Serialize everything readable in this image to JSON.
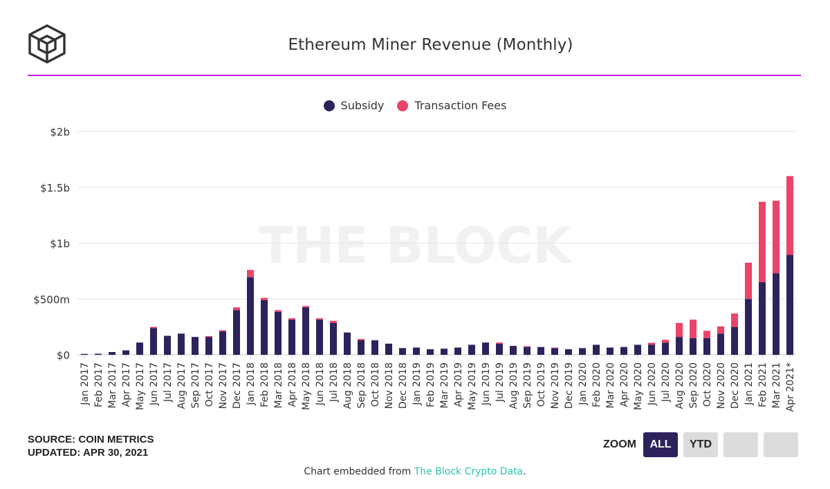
{
  "header": {
    "title": "Ethereum Miner Revenue (Monthly)"
  },
  "watermark": "THE BLOCK",
  "colors": {
    "subsidy": "#2d225c",
    "fees": "#ea4469",
    "accent_rule": "#c41fe0",
    "link": "#2ec4a9"
  },
  "chart_data": {
    "type": "bar",
    "stacked": true,
    "categories": [
      "Jan 2017",
      "Feb 2017",
      "Mar 2017",
      "Apr 2017",
      "May 2017",
      "Jun 2017",
      "Jul 2017",
      "Aug 2017",
      "Sep 2017",
      "Oct 2017",
      "Nov 2017",
      "Dec 2017",
      "Jan 2018",
      "Feb 2018",
      "Mar 2018",
      "Apr 2018",
      "May 2018",
      "Jun 2018",
      "Jul 2018",
      "Aug 2018",
      "Sep 2018",
      "Oct 2018",
      "Nov 2018",
      "Dec 2018",
      "Jan 2019",
      "Feb 2019",
      "Mar 2019",
      "Apr 2019",
      "May 2019",
      "Jun 2019",
      "Jul 2019",
      "Aug 2019",
      "Sep 2019",
      "Oct 2019",
      "Nov 2019",
      "Dec 2019",
      "Jan 2020",
      "Feb 2020",
      "Mar 2020",
      "Apr 2020",
      "May 2020",
      "Jun 2020",
      "Jul 2020",
      "Aug 2020",
      "Sep 2020",
      "Oct 2020",
      "Nov 2020",
      "Dec 2020",
      "Jan 2021",
      "Feb 2021",
      "Mar 2021",
      "Apr 2021*"
    ],
    "series": [
      {
        "name": "Subsidy",
        "values": [
          8,
          10,
          25,
          40,
          110,
          240,
          170,
          190,
          160,
          160,
          210,
          400,
          695,
          490,
          385,
          315,
          425,
          315,
          285,
          200,
          130,
          130,
          100,
          60,
          65,
          50,
          55,
          65,
          90,
          110,
          100,
          80,
          70,
          70,
          60,
          50,
          60,
          90,
          65,
          70,
          90,
          90,
          110,
          160,
          150,
          150,
          190,
          250,
          500,
          650,
          730,
          895
        ]
      },
      {
        "name": "Transaction Fees",
        "values": [
          0,
          0,
          0,
          0,
          0,
          10,
          0,
          0,
          0,
          8,
          10,
          25,
          65,
          20,
          15,
          12,
          12,
          12,
          20,
          0,
          12,
          0,
          0,
          0,
          0,
          0,
          0,
          0,
          0,
          0,
          10,
          0,
          8,
          0,
          5,
          0,
          0,
          0,
          0,
          0,
          0,
          18,
          25,
          125,
          165,
          65,
          65,
          120,
          325,
          720,
          650,
          705
        ]
      }
    ],
    "ylim": [
      0,
      2000
    ],
    "yticks": [
      0,
      500,
      1000,
      1500,
      2000
    ],
    "ytick_labels": [
      "$0",
      "$500m",
      "$1b",
      "$1.5b",
      "$2b"
    ],
    "grid": true,
    "legend_position": "top-center"
  },
  "footer": {
    "source": "SOURCE: COIN METRICS",
    "updated": "UPDATED: APR 30, 2021",
    "zoom_label": "ZOOM",
    "zoom_all": "ALL",
    "zoom_ytd": "YTD",
    "embed_prefix": "Chart embedded from ",
    "embed_link": "The Block Crypto Data",
    "embed_suffix": "."
  }
}
